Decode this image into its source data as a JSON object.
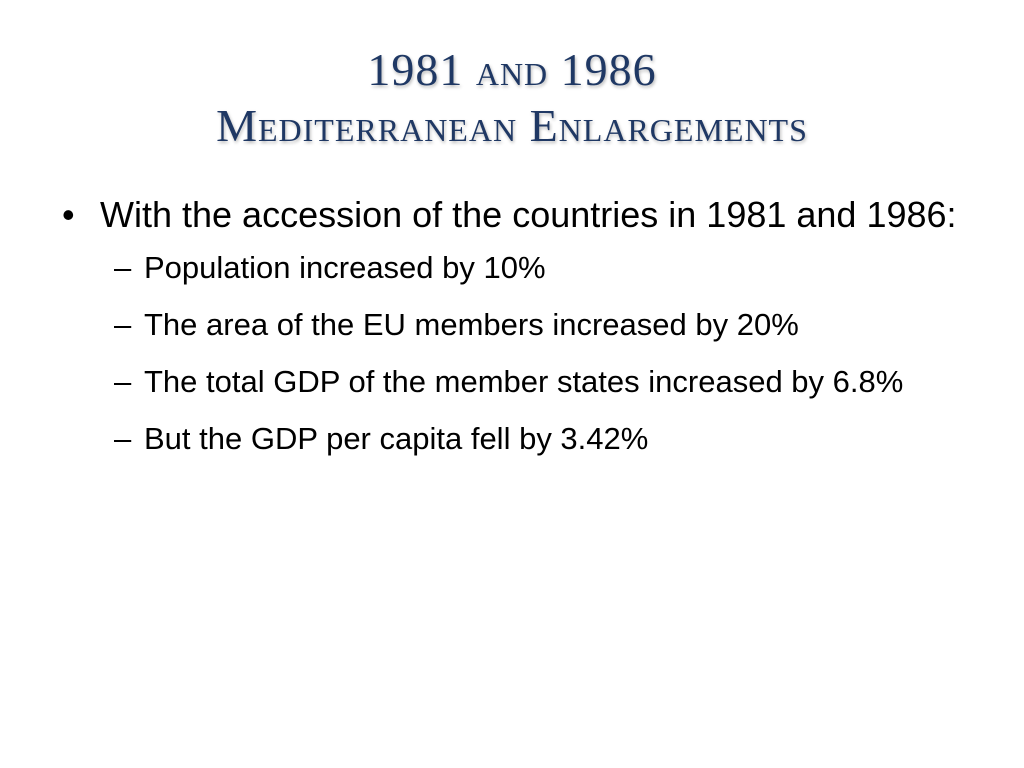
{
  "slide": {
    "title_line1": "1981 and 1986",
    "title_line2": "Mediterranean Enlargements",
    "bullet_symbol": "•",
    "dash_symbol": "–",
    "main_point": "With the accession of the countries in 1981 and 1986:",
    "sub_points": [
      "Population increased by 10%",
      "The area of the EU members increased by 20%",
      "The total GDP of the member states increased by 6.8%",
      "But the GDP per capita fell by 3.42%"
    ]
  },
  "colors": {
    "title": "#1f3864",
    "body_text": "#000000",
    "background": "#ffffff"
  }
}
